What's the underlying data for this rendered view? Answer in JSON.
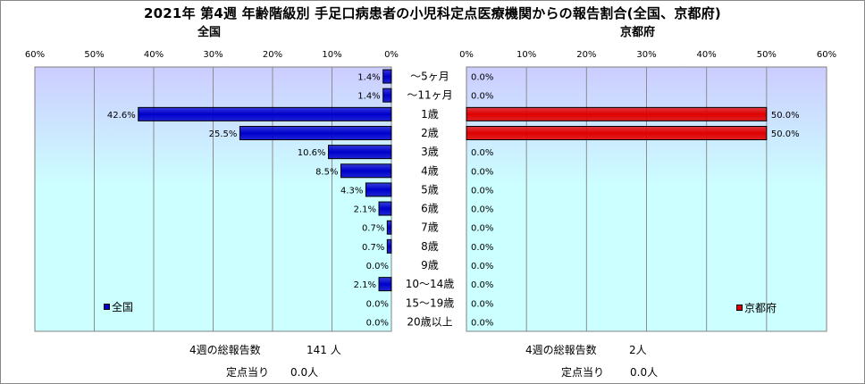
{
  "title": "2021年 第4週 年齢階級別 手足口病患者の小児科定点医療機関からの報告割合(全国、京都府)",
  "colors": {
    "national_bar": "#0000cc",
    "kyoto_bar": "#e00000",
    "plot_bg_top": "#ccccff",
    "plot_bg_bottom": "#ccffff"
  },
  "chart_data": [
    {
      "type": "bar",
      "orientation": "horizontal-reversed",
      "subtitle": "全国",
      "x_ticks": [
        "60%",
        "50%",
        "40%",
        "30%",
        "20%",
        "10%",
        "0%"
      ],
      "xlim": [
        0,
        60
      ],
      "categories": [
        "〜5ヶ月",
        "〜11ヶ月",
        "1歳",
        "2歳",
        "3歳",
        "4歳",
        "5歳",
        "6歳",
        "7歳",
        "8歳",
        "9歳",
        "10〜14歳",
        "15〜19歳",
        "20歳以上"
      ],
      "series": [
        {
          "name": "全国",
          "values": [
            1.4,
            1.4,
            42.6,
            25.5,
            10.6,
            8.5,
            4.3,
            2.1,
            0.7,
            0.7,
            0.0,
            2.1,
            0.0,
            0.0
          ],
          "labels": [
            "1.4%",
            "1.4%",
            "42.6%",
            "25.5%",
            "10.6%",
            "8.5%",
            "4.3%",
            "2.1%",
            "0.7%",
            "0.7%",
            "0.0%",
            "2.1%",
            "0.0%",
            "0.0%"
          ]
        }
      ],
      "legend": "bottom-left"
    },
    {
      "type": "bar",
      "orientation": "horizontal",
      "subtitle": "京都府",
      "x_ticks": [
        "0%",
        "10%",
        "20%",
        "30%",
        "40%",
        "50%",
        "60%"
      ],
      "xlim": [
        0,
        60
      ],
      "categories": [
        "〜5ヶ月",
        "〜11ヶ月",
        "1歳",
        "2歳",
        "3歳",
        "4歳",
        "5歳",
        "6歳",
        "7歳",
        "8歳",
        "9歳",
        "10〜14歳",
        "15〜19歳",
        "20歳以上"
      ],
      "series": [
        {
          "name": "京都府",
          "values": [
            0.0,
            0.0,
            50.0,
            50.0,
            0.0,
            0.0,
            0.0,
            0.0,
            0.0,
            0.0,
            0.0,
            0.0,
            0.0,
            0.0
          ],
          "labels": [
            "0.0%",
            "0.0%",
            "50.0%",
            "50.0%",
            "0.0%",
            "0.0%",
            "0.0%",
            "0.0%",
            "0.0%",
            "0.0%",
            "0.0%",
            "0.0%",
            "0.0%",
            "0.0%"
          ]
        }
      ],
      "legend": "bottom-right"
    }
  ],
  "footer": {
    "national": {
      "total_label": "4週の総報告数",
      "total_value": "141 人",
      "per_label": "定点当り",
      "per_value": "0.0人"
    },
    "kyoto": {
      "total_label": "4週の総報告数",
      "total_value": "2人",
      "per_label": "定点当り",
      "per_value": "0.0人"
    }
  }
}
